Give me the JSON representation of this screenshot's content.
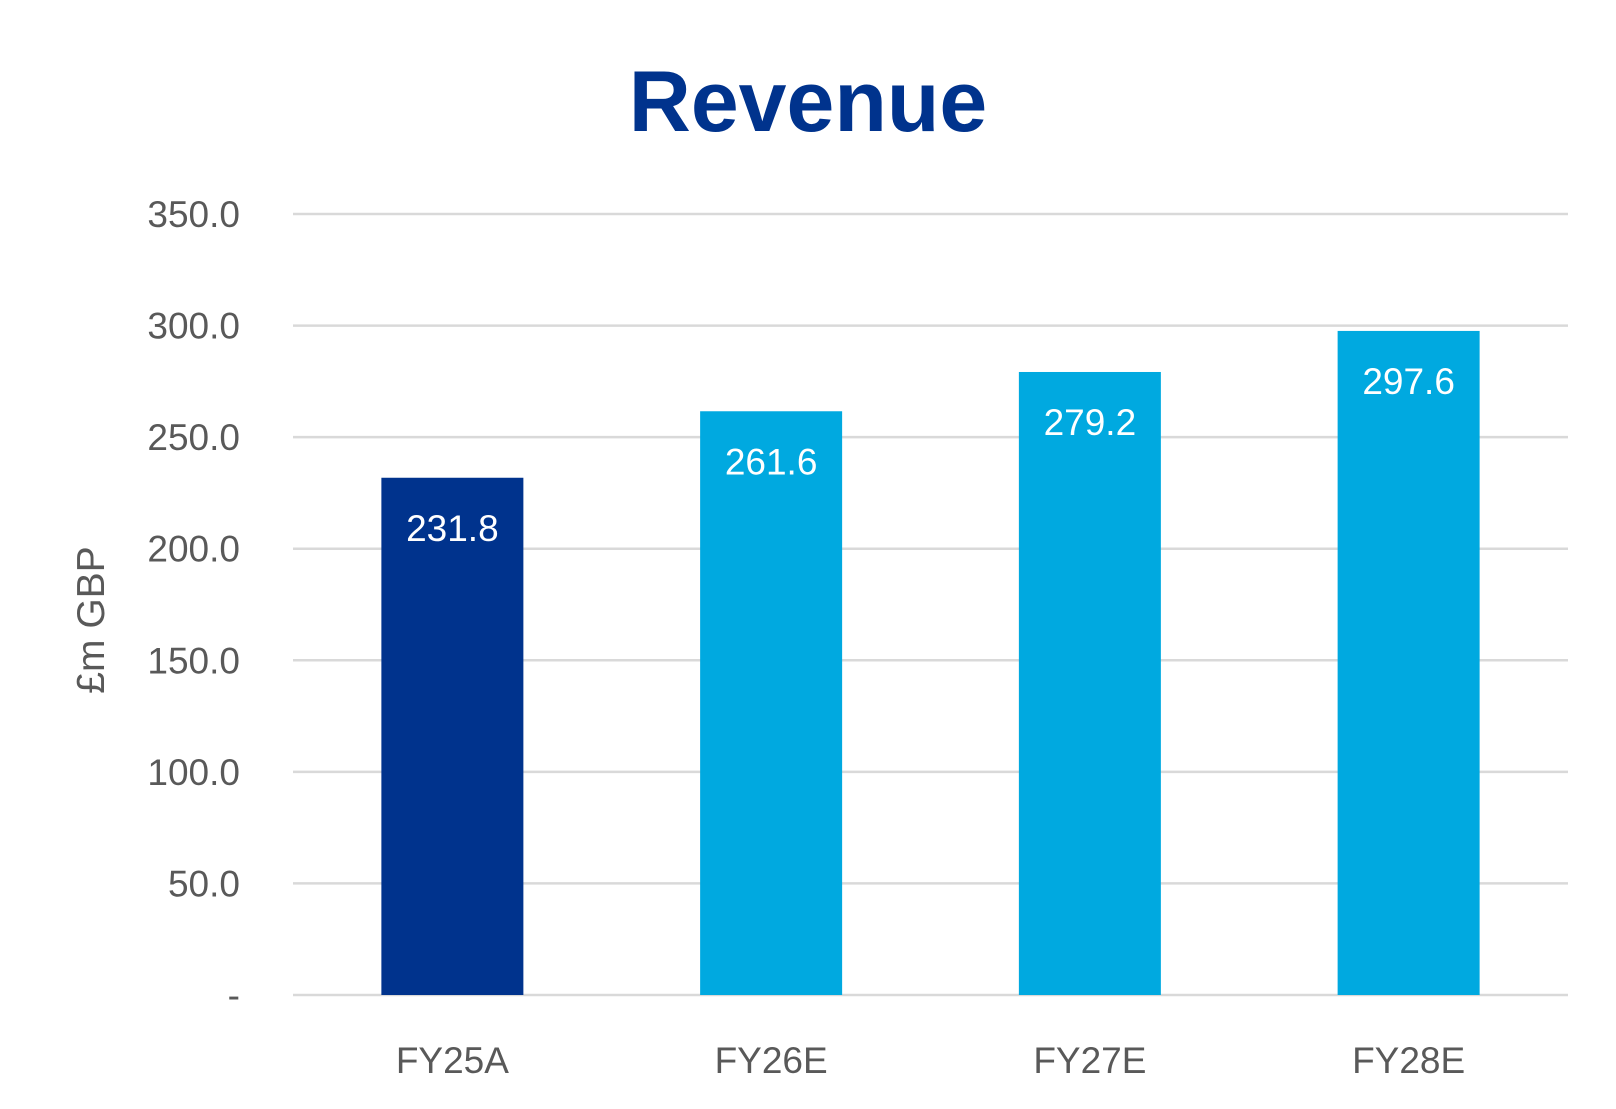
{
  "chart_data": {
    "type": "bar",
    "title": "Revenue",
    "xlabel": "",
    "ylabel": "£m GBP",
    "categories": [
      "FY25A",
      "FY26E",
      "FY27E",
      "FY28E"
    ],
    "values": [
      231.8,
      261.6,
      279.2,
      297.6
    ],
    "data_labels": [
      "231.8",
      "261.6",
      "279.2",
      "297.6"
    ],
    "bar_colors": [
      "#00338D",
      "#00A9E0",
      "#00A9E0",
      "#00A9E0"
    ],
    "ylim": [
      0,
      350
    ],
    "yticks": [
      0,
      50,
      100,
      150,
      200,
      250,
      300,
      350
    ],
    "ytick_labels": [
      "-",
      "50.0",
      "100.0",
      "150.0",
      "200.0",
      "250.0",
      "300.0",
      "350.0"
    ],
    "grid": true,
    "legend": "none"
  },
  "colors": {
    "title": "#00338D",
    "axis_text": "#595959",
    "gridline": "#D9D9D9",
    "data_label": "#FFFFFF"
  }
}
